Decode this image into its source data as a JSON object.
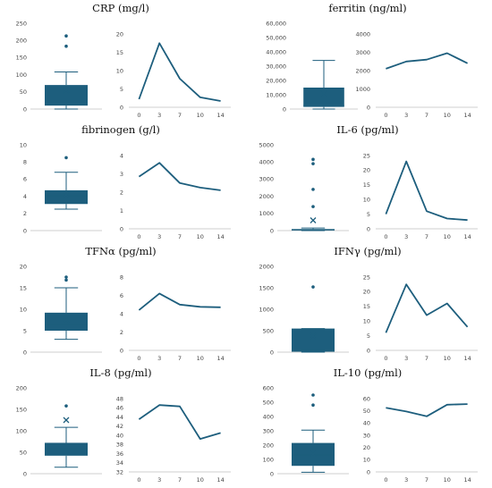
{
  "colors": {
    "box": "#1d5e7d",
    "line": "#1d5e7d",
    "axis": "#bfbfbf",
    "text": "#444444"
  },
  "chart_data": [
    {
      "title": "CRP (mg/l)",
      "box": {
        "type": "box",
        "ylim": [
          0,
          250
        ],
        "yticks": [
          "0",
          "50",
          "100",
          "150",
          "200",
          "250"
        ],
        "q1": 10,
        "median": 35,
        "q3": 70,
        "mean": 55,
        "whisker_low": 0,
        "whisker_high": 108,
        "outliers": [
          183,
          213
        ]
      },
      "line": {
        "type": "line",
        "x": [
          "0",
          "3",
          "7",
          "10",
          "14"
        ],
        "values": [
          2.2,
          17.5,
          7.8,
          2.7,
          1.7
        ],
        "ylim": [
          0,
          20
        ],
        "yticks": [
          "0",
          "5",
          "10",
          "15",
          "20"
        ]
      }
    },
    {
      "title": "ferritin (ng/ml)",
      "box": {
        "type": "box",
        "ylim": [
          0,
          60000
        ],
        "yticks": [
          "0",
          "10,000",
          "20,000",
          "30,000",
          "40,000",
          "50,000",
          "60,000"
        ],
        "q1": 1500,
        "median": 2500,
        "q3": 15000,
        "mean": 11000,
        "whisker_low": 0,
        "whisker_high": 34000,
        "outliers": []
      },
      "line": {
        "type": "line",
        "x": [
          "0",
          "3",
          "7",
          "10",
          "14"
        ],
        "values": [
          2100,
          2500,
          2600,
          2950,
          2400
        ],
        "ylim": [
          0,
          4000
        ],
        "yticks": [
          "0",
          "1000",
          "2000",
          "3000",
          "4000"
        ]
      }
    },
    {
      "title": "fibrinogen (g/l)",
      "box": {
        "type": "box",
        "ylim": [
          0,
          10
        ],
        "yticks": [
          "0",
          "2",
          "4",
          "6",
          "8",
          "10"
        ],
        "q1": 3.1,
        "median": 4.1,
        "q3": 4.7,
        "mean": 4.2,
        "whisker_low": 2.5,
        "whisker_high": 6.8,
        "outliers": [
          8.5
        ]
      },
      "line": {
        "type": "line",
        "x": [
          "0",
          "3",
          "7",
          "10",
          "14"
        ],
        "values": [
          2.85,
          3.6,
          2.5,
          2.25,
          2.1
        ],
        "ylim": [
          0,
          4
        ],
        "yticks": [
          "0",
          "1",
          "2",
          "3",
          "4"
        ]
      }
    },
    {
      "title": "IL-6 (pg/ml)",
      "box": {
        "type": "box",
        "ylim": [
          0,
          5000
        ],
        "yticks": [
          "0",
          "1000",
          "2000",
          "3000",
          "4000",
          "5000"
        ],
        "q1": 20,
        "median": 40,
        "q3": 90,
        "mean": 600,
        "whisker_low": 0,
        "whisker_high": 150,
        "outliers": [
          1400,
          2400,
          3900,
          4150
        ]
      },
      "line": {
        "type": "line",
        "x": [
          "0",
          "3",
          "7",
          "10",
          "14"
        ],
        "values": [
          5,
          23,
          6,
          3.5,
          3
        ],
        "ylim": [
          0,
          25
        ],
        "yticks": [
          "0",
          "5",
          "10",
          "15",
          "20",
          "25"
        ]
      }
    },
    {
      "title": "TFNα (pg/ml)",
      "box": {
        "type": "box",
        "ylim": [
          0,
          20
        ],
        "yticks": [
          "0",
          "5",
          "10",
          "15",
          "20"
        ],
        "q1": 5,
        "median": 6.5,
        "q3": 9.2,
        "mean": 7.5,
        "whisker_low": 3,
        "whisker_high": 15,
        "outliers": [
          16.8,
          17.5
        ]
      },
      "line": {
        "type": "line",
        "x": [
          "0",
          "3",
          "7",
          "10",
          "14"
        ],
        "values": [
          4.4,
          6.2,
          5,
          4.75,
          4.7
        ],
        "ylim": [
          0,
          8
        ],
        "yticks": [
          "0",
          "2",
          "4",
          "6",
          "8"
        ]
      }
    },
    {
      "title": "IFNγ (pg/ml)",
      "box": {
        "type": "box",
        "ylim": [
          0,
          2000
        ],
        "yticks": [
          "0",
          "500",
          "1000",
          "1500",
          "2000"
        ],
        "q1": 10,
        "median": 40,
        "q3": 550,
        "mean": 380,
        "whisker_low": 0,
        "whisker_high": 550,
        "outliers": [
          1520
        ]
      },
      "line": {
        "type": "line",
        "x": [
          "0",
          "3",
          "7",
          "10",
          "14"
        ],
        "values": [
          6,
          22.5,
          12,
          16,
          8
        ],
        "ylim": [
          0,
          25
        ],
        "yticks": [
          "0",
          "5",
          "10",
          "15",
          "20",
          "25"
        ]
      }
    },
    {
      "title": "IL-8 (pg/ml)",
      "box": {
        "type": "box",
        "ylim": [
          0,
          200
        ],
        "yticks": [
          "0",
          "50",
          "100",
          "150",
          "200"
        ],
        "q1": 42,
        "median": 58,
        "q3": 72,
        "mean": 125,
        "whisker_low": 15,
        "whisker_high": 108,
        "outliers": [
          158
        ]
      },
      "line": {
        "type": "line",
        "x": [
          "0",
          "3",
          "7",
          "10",
          "14"
        ],
        "values": [
          43.5,
          46.6,
          46.3,
          39.2,
          40.5
        ],
        "ylim": [
          32,
          48
        ],
        "yticks": [
          "32",
          "34",
          "36",
          "38",
          "40",
          "42",
          "44",
          "46",
          "48"
        ]
      }
    },
    {
      "title": "IL-10 (pg/ml)",
      "box": {
        "type": "box",
        "ylim": [
          0,
          600
        ],
        "yticks": [
          "0",
          "100",
          "200",
          "300",
          "400",
          "500",
          "600"
        ],
        "q1": 55,
        "median": 130,
        "q3": 215,
        "mean": 140,
        "whisker_low": 10,
        "whisker_high": 305,
        "outliers": [
          480,
          550
        ]
      },
      "line": {
        "type": "line",
        "x": [
          "0",
          "3",
          "7",
          "10",
          "14"
        ],
        "values": [
          52.5,
          49.5,
          45.5,
          55,
          55.5
        ],
        "ylim": [
          0,
          60
        ],
        "yticks": [
          "0",
          "10",
          "20",
          "30",
          "40",
          "50",
          "60"
        ]
      }
    }
  ]
}
